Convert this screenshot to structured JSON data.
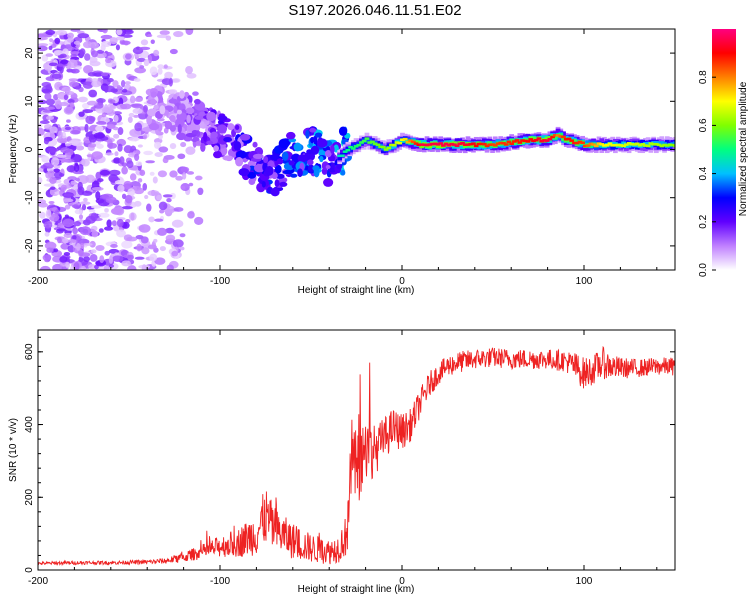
{
  "title": "S197.2026.046.11.51.E02",
  "chart_data": [
    {
      "type": "heatmap",
      "name": "spectrogram",
      "xlabel": "Height of straight line (km)",
      "ylabel": "Frequency (Hz)",
      "xlim": [
        -200,
        150
      ],
      "ylim": [
        -25,
        25
      ],
      "xticks": [
        -200,
        -100,
        0,
        100
      ],
      "xtick_labels": [
        "-200",
        "-100",
        "0",
        "100"
      ],
      "yticks": [
        -20,
        -10,
        0,
        10,
        20
      ],
      "ytick_labels": [
        "-20",
        "-10",
        "0",
        "10",
        "20"
      ],
      "ridge": {
        "x": [
          -140,
          -130,
          -120,
          -110,
          -100,
          -90,
          -80,
          -70,
          -60,
          -50,
          -40,
          -30,
          -20,
          -10,
          0,
          10,
          30,
          50,
          70,
          80,
          85,
          90,
          100,
          110,
          130,
          150
        ],
        "freq": [
          8,
          8,
          7,
          5,
          3,
          0,
          -3,
          -5,
          -1,
          0,
          -3,
          0,
          2,
          0,
          2,
          1,
          1,
          1,
          2,
          2,
          3,
          2,
          1,
          1,
          1,
          1
        ],
        "amplitude": [
          0.1,
          0.15,
          0.15,
          0.2,
          0.25,
          0.3,
          0.35,
          0.35,
          0.4,
          0.45,
          0.4,
          0.5,
          0.55,
          0.6,
          0.7,
          0.95,
          0.95,
          0.85,
          0.9,
          0.95,
          0.8,
          0.9,
          0.85,
          0.7,
          0.65,
          0.6
        ]
      },
      "colorbar": {
        "label": "Normalized spectral amplitude",
        "range": [
          0,
          1
        ],
        "ticks": [
          0.0,
          0.2,
          0.4,
          0.6,
          0.8
        ],
        "tick_labels": [
          "0.0",
          "0.2",
          "0.4",
          "0.6",
          "0.8"
        ],
        "colormap": [
          "#ffffff",
          "#c080ff",
          "#6000ff",
          "#0000ff",
          "#00c0ff",
          "#00ff80",
          "#80ff00",
          "#ffff00",
          "#ff8000",
          "#ff0000",
          "#ff0080"
        ]
      }
    },
    {
      "type": "line",
      "name": "snr",
      "xlabel": "Height of straight line (km)",
      "ylabel": "SNR (10 * v/v)",
      "xlim": [
        -200,
        150
      ],
      "ylim": [
        0,
        660
      ],
      "xticks": [
        -200,
        -100,
        0,
        100
      ],
      "xtick_labels": [
        "-200",
        "-100",
        "0",
        "100"
      ],
      "yticks": [
        0,
        200,
        400,
        600
      ],
      "ytick_labels": [
        "0",
        "200",
        "400",
        "600"
      ],
      "color": "#ee2222",
      "x": [
        -200,
        -180,
        -160,
        -140,
        -130,
        -120,
        -110,
        -100,
        -90,
        -80,
        -75,
        -70,
        -60,
        -50,
        -40,
        -35,
        -30,
        -28,
        -25,
        -22,
        -20,
        -15,
        -10,
        -5,
        0,
        5,
        10,
        15,
        20,
        25,
        30,
        40,
        50,
        60,
        70,
        80,
        90,
        95,
        100,
        105,
        110,
        115,
        120,
        130,
        140,
        150
      ],
      "y": [
        18,
        20,
        20,
        22,
        25,
        35,
        50,
        65,
        75,
        100,
        150,
        110,
        80,
        60,
        50,
        60,
        100,
        300,
        280,
        310,
        320,
        330,
        360,
        390,
        380,
        400,
        460,
        510,
        540,
        560,
        570,
        580,
        585,
        580,
        580,
        580,
        575,
        560,
        540,
        550,
        570,
        560,
        555,
        555,
        560,
        560
      ],
      "jitter": [
        4,
        5,
        5,
        6,
        8,
        14,
        20,
        30,
        40,
        60,
        80,
        60,
        50,
        40,
        35,
        40,
        60,
        120,
        110,
        100,
        90,
        70,
        60,
        55,
        50,
        45,
        40,
        35,
        30,
        30,
        30,
        28,
        28,
        28,
        28,
        28,
        30,
        40,
        45,
        40,
        45,
        35,
        30,
        25,
        25,
        25
      ]
    }
  ]
}
